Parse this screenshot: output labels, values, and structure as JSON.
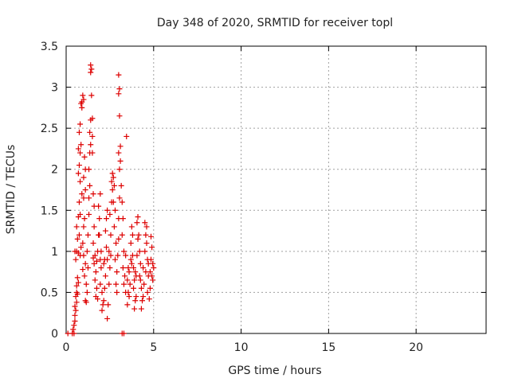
{
  "chart_data": {
    "type": "scatter",
    "title": "Day 348 of 2020, SRMTID for receiver topl",
    "xlabel": "GPS time / hours",
    "ylabel": "SRMTID / TECUs",
    "xlim": [
      0,
      24
    ],
    "ylim": [
      0,
      3.5
    ],
    "xticks": [
      0,
      5,
      10,
      15,
      20
    ],
    "yticks": [
      0,
      0.5,
      1,
      1.5,
      2,
      2.5,
      3,
      3.5
    ],
    "xtick_labels": [
      "0",
      "5",
      "10",
      "15",
      "20"
    ],
    "ytick_labels": [
      "0",
      "0.5",
      "1",
      "1.5",
      "2",
      "2.5",
      "3",
      "3.5"
    ],
    "grid": true,
    "series": [
      {
        "name": "SRMTID",
        "color": "#dd0000",
        "marker": "plus",
        "points": [
          [
            0.1,
            0.0
          ],
          [
            0.35,
            0.0
          ],
          [
            0.45,
            0.0
          ],
          [
            3.2,
            0.0
          ],
          [
            3.3,
            0.0
          ],
          [
            0.4,
            0.05
          ],
          [
            0.45,
            0.1
          ],
          [
            0.5,
            0.15
          ],
          [
            0.5,
            0.22
          ],
          [
            0.55,
            0.28
          ],
          [
            0.5,
            0.33
          ],
          [
            0.6,
            0.38
          ],
          [
            0.55,
            0.45
          ],
          [
            0.6,
            0.5
          ],
          [
            0.65,
            0.48
          ],
          [
            0.6,
            0.58
          ],
          [
            0.7,
            0.62
          ],
          [
            0.65,
            0.68
          ],
          [
            0.55,
            0.9
          ],
          [
            0.5,
            1.0
          ],
          [
            0.6,
            1.0
          ],
          [
            0.7,
            0.98
          ],
          [
            0.65,
            1.15
          ],
          [
            0.75,
            1.2
          ],
          [
            0.6,
            1.3
          ],
          [
            0.7,
            1.42
          ],
          [
            0.8,
            1.45
          ],
          [
            0.75,
            1.6
          ],
          [
            0.9,
            1.7
          ],
          [
            0.8,
            1.85
          ],
          [
            0.7,
            1.95
          ],
          [
            0.75,
            2.05
          ],
          [
            0.8,
            2.2
          ],
          [
            0.7,
            2.25
          ],
          [
            0.85,
            2.3
          ],
          [
            0.75,
            2.45
          ],
          [
            0.8,
            2.55
          ],
          [
            0.9,
            2.75
          ],
          [
            0.85,
            2.8
          ],
          [
            0.9,
            2.82
          ],
          [
            1.0,
            2.85
          ],
          [
            0.95,
            2.9
          ],
          [
            0.95,
            1.1
          ],
          [
            1.0,
            1.3
          ],
          [
            1.05,
            1.4
          ],
          [
            1.0,
            1.65
          ],
          [
            1.1,
            1.75
          ],
          [
            1.0,
            1.9
          ],
          [
            1.1,
            2.0
          ],
          [
            1.05,
            2.15
          ],
          [
            1.0,
            0.95
          ],
          [
            1.1,
            0.85
          ],
          [
            1.05,
            0.7
          ],
          [
            1.15,
            0.6
          ],
          [
            1.2,
            0.5
          ],
          [
            1.1,
            0.4
          ],
          [
            1.15,
            0.38
          ],
          [
            1.2,
            1.0
          ],
          [
            1.25,
            1.2
          ],
          [
            1.3,
            1.45
          ],
          [
            1.3,
            1.65
          ],
          [
            1.35,
            1.8
          ],
          [
            1.3,
            2.0
          ],
          [
            1.35,
            2.2
          ],
          [
            1.4,
            2.3
          ],
          [
            1.35,
            2.45
          ],
          [
            1.4,
            2.6
          ],
          [
            1.45,
            2.9
          ],
          [
            1.4,
            3.18
          ],
          [
            1.45,
            3.22
          ],
          [
            1.4,
            3.27
          ],
          [
            1.5,
            2.62
          ],
          [
            1.5,
            2.4
          ],
          [
            1.5,
            2.2
          ],
          [
            1.55,
            1.7
          ],
          [
            1.6,
            1.55
          ],
          [
            1.6,
            1.3
          ],
          [
            1.55,
            1.1
          ],
          [
            1.65,
            0.95
          ],
          [
            1.6,
            0.85
          ],
          [
            1.7,
            0.75
          ],
          [
            1.65,
            0.65
          ],
          [
            1.75,
            0.55
          ],
          [
            1.7,
            0.45
          ],
          [
            1.8,
            0.42
          ],
          [
            1.8,
            1.0
          ],
          [
            1.85,
            1.2
          ],
          [
            1.9,
            1.4
          ],
          [
            1.85,
            1.55
          ],
          [
            1.95,
            1.7
          ],
          [
            1.9,
            1.2
          ],
          [
            2.0,
            1.0
          ],
          [
            2.0,
            0.8
          ],
          [
            1.95,
            0.6
          ],
          [
            2.05,
            0.5
          ],
          [
            2.1,
            0.35
          ],
          [
            2.05,
            0.28
          ],
          [
            2.15,
            0.4
          ],
          [
            2.2,
            0.55
          ],
          [
            2.25,
            0.7
          ],
          [
            2.2,
            0.9
          ],
          [
            2.3,
            1.05
          ],
          [
            2.25,
            1.25
          ],
          [
            2.3,
            1.4
          ],
          [
            2.35,
            1.5
          ],
          [
            2.35,
            0.18
          ],
          [
            2.4,
            0.35
          ],
          [
            2.45,
            0.6
          ],
          [
            2.5,
            0.8
          ],
          [
            2.45,
            1.0
          ],
          [
            2.55,
            1.2
          ],
          [
            2.5,
            1.45
          ],
          [
            2.6,
            1.6
          ],
          [
            2.65,
            1.75
          ],
          [
            2.6,
            1.85
          ],
          [
            2.7,
            1.9
          ],
          [
            2.65,
            1.95
          ],
          [
            2.75,
            1.8
          ],
          [
            2.7,
            1.6
          ],
          [
            2.8,
            1.5
          ],
          [
            2.75,
            1.3
          ],
          [
            2.85,
            1.1
          ],
          [
            2.8,
            0.9
          ],
          [
            2.9,
            0.75
          ],
          [
            2.85,
            0.6
          ],
          [
            2.9,
            0.5
          ],
          [
            2.95,
            0.95
          ],
          [
            3.0,
            1.15
          ],
          [
            3.0,
            1.4
          ],
          [
            3.05,
            1.65
          ],
          [
            3.05,
            2.0
          ],
          [
            3.1,
            2.1
          ],
          [
            3.0,
            2.2
          ],
          [
            3.1,
            2.28
          ],
          [
            3.05,
            2.65
          ],
          [
            3.0,
            2.92
          ],
          [
            3.05,
            2.98
          ],
          [
            3.0,
            3.15
          ],
          [
            3.15,
            1.8
          ],
          [
            3.2,
            1.6
          ],
          [
            3.25,
            1.4
          ],
          [
            3.2,
            1.2
          ],
          [
            3.3,
            1.0
          ],
          [
            3.25,
            0.8
          ],
          [
            3.35,
            0.7
          ],
          [
            3.3,
            0.6
          ],
          [
            3.4,
            0.5
          ],
          [
            3.45,
            2.4
          ],
          [
            3.5,
            0.65
          ],
          [
            3.55,
            0.5
          ],
          [
            3.5,
            0.35
          ],
          [
            3.6,
            0.45
          ],
          [
            3.65,
            0.6
          ],
          [
            3.6,
            0.75
          ],
          [
            3.7,
            0.9
          ],
          [
            3.7,
            1.1
          ],
          [
            3.75,
            1.3
          ],
          [
            3.8,
            1.2
          ],
          [
            3.8,
            0.95
          ],
          [
            3.85,
            0.8
          ],
          [
            3.9,
            0.65
          ],
          [
            3.85,
            0.55
          ],
          [
            3.95,
            0.4
          ],
          [
            3.9,
            0.3
          ],
          [
            4.0,
            0.45
          ],
          [
            4.0,
            0.7
          ],
          [
            4.05,
            0.95
          ],
          [
            4.1,
            1.15
          ],
          [
            4.05,
            1.35
          ],
          [
            4.1,
            1.42
          ],
          [
            4.15,
            1.2
          ],
          [
            4.2,
            1.0
          ],
          [
            4.25,
            0.85
          ],
          [
            4.2,
            0.7
          ],
          [
            4.3,
            0.55
          ],
          [
            4.35,
            0.4
          ],
          [
            4.3,
            0.3
          ],
          [
            4.4,
            0.45
          ],
          [
            4.45,
            0.6
          ],
          [
            4.4,
            0.8
          ],
          [
            4.5,
            1.0
          ],
          [
            4.55,
            1.2
          ],
          [
            4.5,
            1.35
          ],
          [
            4.6,
            1.3
          ],
          [
            4.6,
            1.1
          ],
          [
            4.65,
            0.9
          ],
          [
            4.7,
            0.7
          ],
          [
            4.65,
            0.5
          ],
          [
            4.75,
            0.42
          ],
          [
            4.8,
            0.55
          ],
          [
            4.8,
            0.75
          ],
          [
            4.85,
            0.9
          ],
          [
            4.9,
            1.05
          ],
          [
            4.85,
            1.18
          ],
          [
            4.95,
            0.85
          ],
          [
            5.0,
            0.8
          ],
          [
            4.95,
            0.65
          ],
          [
            4.9,
            0.7
          ],
          [
            4.7,
            0.85
          ],
          [
            4.55,
            0.75
          ],
          [
            4.25,
            0.65
          ],
          [
            3.95,
            0.75
          ],
          [
            3.75,
            0.85
          ],
          [
            3.55,
            0.8
          ],
          [
            3.4,
            0.95
          ],
          [
            2.55,
            0.95
          ],
          [
            2.35,
            0.9
          ],
          [
            2.15,
            0.85
          ],
          [
            1.95,
            0.9
          ],
          [
            1.75,
            0.88
          ],
          [
            1.55,
            0.92
          ],
          [
            1.25,
            0.8
          ],
          [
            0.95,
            0.78
          ],
          [
            0.85,
            1.05
          ],
          [
            0.8,
            0.95
          ]
        ]
      }
    ]
  }
}
